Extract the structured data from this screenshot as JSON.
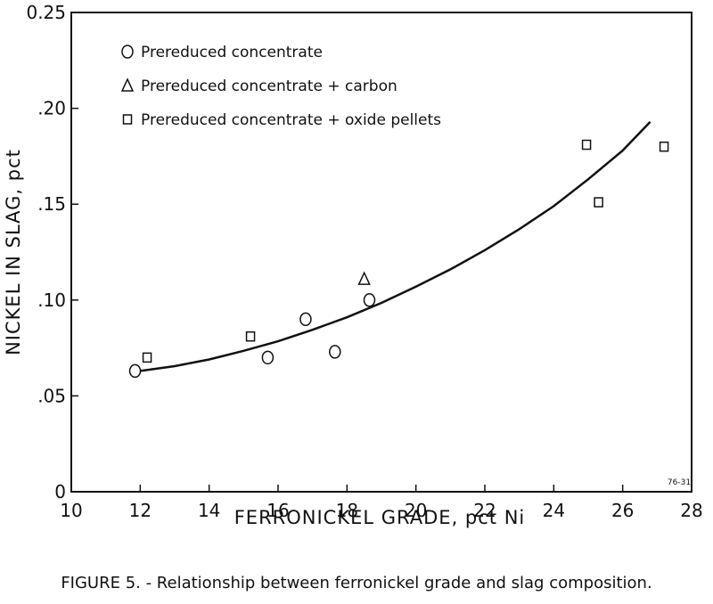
{
  "chart_data": {
    "type": "scatter",
    "xlabel": "FERRONICKEL GRADE, pct Ni",
    "ylabel": "NICKEL IN SLAG, pct",
    "xlim": [
      10,
      28
    ],
    "ylim": [
      0,
      0.25
    ],
    "x_ticks": [
      10,
      12,
      14,
      16,
      18,
      20,
      22,
      24,
      26,
      28
    ],
    "y_ticks": [
      {
        "value": 0,
        "label": "0"
      },
      {
        "value": 0.05,
        "label": ".05"
      },
      {
        "value": 0.1,
        "label": ".10"
      },
      {
        "value": 0.15,
        "label": ".15"
      },
      {
        "value": 0.2,
        "label": ".20"
      },
      {
        "value": 0.25,
        "label": "0.25"
      }
    ],
    "grid": false,
    "legend_position": "top-left",
    "series": [
      {
        "name": "Prereduced concentrate",
        "marker": "circle",
        "points": [
          [
            11.85,
            0.063
          ],
          [
            15.7,
            0.07
          ],
          [
            16.8,
            0.09
          ],
          [
            17.65,
            0.073
          ],
          [
            18.65,
            0.1
          ]
        ]
      },
      {
        "name": "Prereduced concentrate + carbon",
        "marker": "triangle",
        "points": [
          [
            18.5,
            0.111
          ]
        ]
      },
      {
        "name": "Prereduced concentrate + oxide pellets",
        "marker": "square",
        "points": [
          [
            12.2,
            0.07
          ],
          [
            15.2,
            0.081
          ],
          [
            24.95,
            0.181
          ],
          [
            25.3,
            0.151
          ],
          [
            27.2,
            0.18
          ]
        ]
      }
    ],
    "fit_curve": {
      "type": "line",
      "x": [
        12.0,
        13.0,
        14.0,
        15.0,
        16.0,
        17.0,
        18.0,
        19.0,
        20.0,
        21.0,
        22.0,
        23.0,
        24.0,
        25.0,
        26.0,
        26.8
      ],
      "y": [
        0.063,
        0.0655,
        0.069,
        0.0735,
        0.0785,
        0.0845,
        0.091,
        0.0985,
        0.107,
        0.116,
        0.126,
        0.137,
        0.149,
        0.163,
        0.178,
        0.193
      ]
    },
    "annotation": "76-31"
  },
  "caption": "FIGURE 5. - Relationship between ferronickel grade and slag composition."
}
